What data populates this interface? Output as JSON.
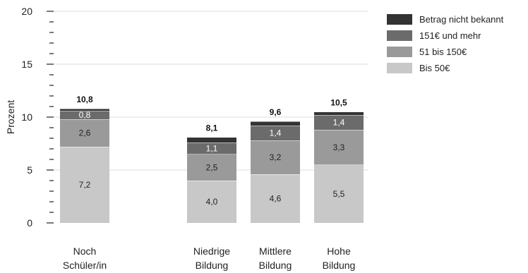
{
  "chart_data": {
    "type": "bar",
    "stacked": true,
    "ylabel": "Prozent",
    "ylim": [
      0,
      20
    ],
    "yticks": [
      0,
      5,
      10,
      15,
      20
    ],
    "grid": true,
    "legend_position": "top-right",
    "categories": [
      [
        "Noch",
        "Schüler/in"
      ],
      [
        "Niedrige",
        "Bildung"
      ],
      [
        "Mittlere",
        "Bildung"
      ],
      [
        "Hohe",
        "Bildung"
      ]
    ],
    "series": [
      {
        "name": "Bis 50€",
        "color": "#c8c8c8",
        "label_color": "#222222",
        "values": [
          7.2,
          4.0,
          4.6,
          5.5
        ],
        "labels": [
          "7,2",
          "4,0",
          "4,6",
          "5,5"
        ]
      },
      {
        "name": "51 bis 150€",
        "color": "#9a9a9a",
        "label_color": "#222222",
        "values": [
          2.6,
          2.5,
          3.2,
          3.3
        ],
        "labels": [
          "2,6",
          "2,5",
          "3,2",
          "3,3"
        ]
      },
      {
        "name": "151€ und mehr",
        "color": "#6b6b6b",
        "label_color": "#ffffff",
        "values": [
          0.8,
          1.1,
          1.4,
          1.4
        ],
        "labels": [
          "0,8",
          "1,1",
          "1,4",
          "1,4"
        ]
      },
      {
        "name": "Betrag nicht bekannt",
        "color": "#333333",
        "label_color": "#ffffff",
        "values": [
          0.2,
          0.5,
          0.4,
          0.3
        ],
        "labels": [
          "",
          "",
          "",
          ""
        ]
      }
    ],
    "totals": [
      10.8,
      8.1,
      9.6,
      10.5
    ],
    "total_labels": [
      "10,8",
      "8,1",
      "9,6",
      "10,5"
    ]
  }
}
